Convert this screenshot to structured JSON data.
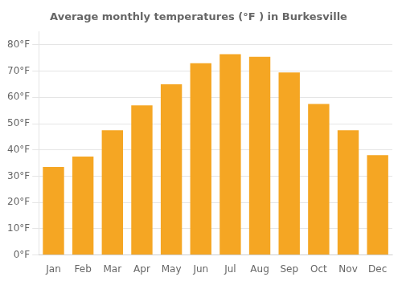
{
  "chart_data": {
    "type": "bar",
    "title": "Average monthly temperatures (°F ) in Burkesville",
    "categories": [
      "Jan",
      "Feb",
      "Mar",
      "Apr",
      "May",
      "Jun",
      "Jul",
      "Aug",
      "Sep",
      "Oct",
      "Nov",
      "Dec"
    ],
    "values": [
      33.5,
      37.5,
      47.5,
      57.0,
      65.0,
      73.0,
      76.5,
      75.5,
      69.5,
      57.5,
      47.5,
      38.0
    ],
    "color": "#F5A623",
    "ylim": [
      0,
      85
    ],
    "yticks": [
      {
        "value": 0,
        "label": "0°F"
      },
      {
        "value": 10,
        "label": "10°F"
      },
      {
        "value": 20,
        "label": "20°F"
      },
      {
        "value": 30,
        "label": "30°F"
      },
      {
        "value": 40,
        "label": "40°F"
      },
      {
        "value": 50,
        "label": "50°F"
      },
      {
        "value": 60,
        "label": "60°F"
      },
      {
        "value": 70,
        "label": "70°F"
      },
      {
        "value": 80,
        "label": "80°F"
      }
    ],
    "grid": true
  }
}
